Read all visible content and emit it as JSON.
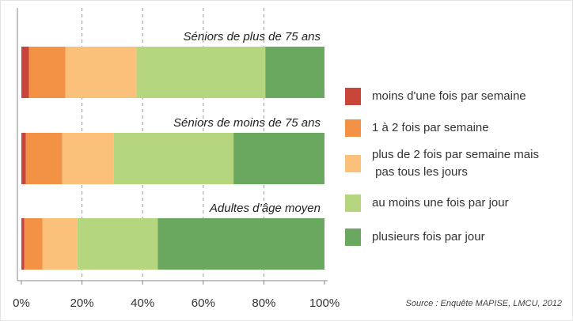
{
  "chart_data": {
    "type": "stacked_barh",
    "categories": [
      "Séniors de plus de 75 ans",
      "Séniors de moins de 75 ans",
      "Adultes d’âge moyen"
    ],
    "series": [
      {
        "name": "moins d'une fois par semaine",
        "color": "#c9453a",
        "values": [
          2.5,
          1.5,
          1
        ]
      },
      {
        "name": "1 à 2 fois par semaine",
        "color": "#f39244",
        "values": [
          12,
          12,
          6
        ]
      },
      {
        "name": "plus de 2 fois par semaine mais pas tous les jours",
        "color": "#fbc07a",
        "values": [
          23.5,
          17,
          11.5
        ]
      },
      {
        "name": "au moins une fois par jour",
        "color": "#b5d57f",
        "values": [
          42.5,
          39.5,
          26.5
        ]
      },
      {
        "name": "plusieurs fois par jour",
        "color": "#6aa85f",
        "values": [
          19.5,
          30,
          55
        ]
      }
    ],
    "xlim": [
      0,
      100
    ],
    "xticks": [
      {
        "value": 0,
        "label": "0%"
      },
      {
        "value": 20,
        "label": "20%"
      },
      {
        "value": 40,
        "label": "40%"
      },
      {
        "value": 60,
        "label": "60%"
      },
      {
        "value": 80,
        "label": "80%"
      },
      {
        "value": 100,
        "label": "100%"
      }
    ],
    "grid": true,
    "legend": "right",
    "source": "Source : Enquête MAPISE, LMCU, 2012"
  }
}
